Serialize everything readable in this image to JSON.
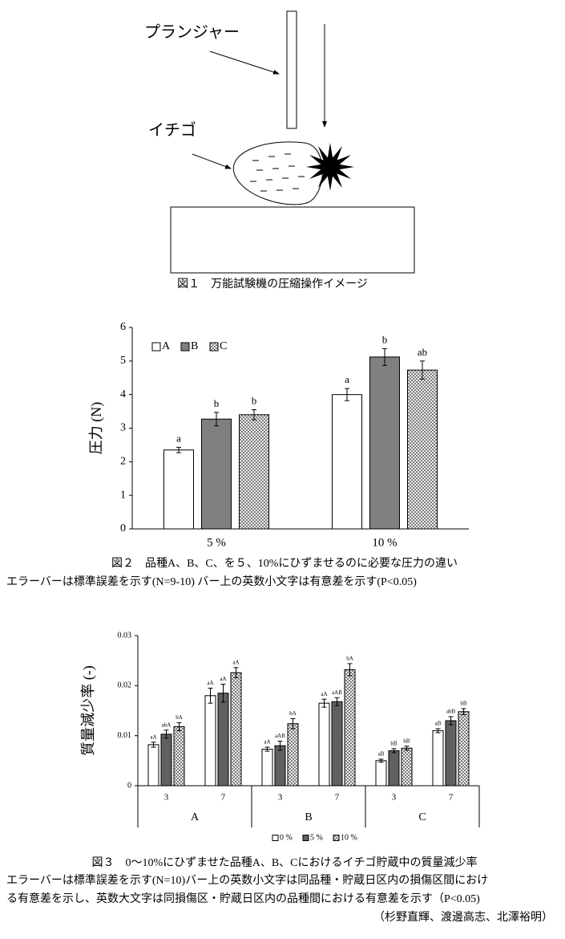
{
  "figure1": {
    "plunger_label": "プランジャー",
    "strawberry_label": "イチゴ",
    "caption": "図１　万能試験機の圧縮操作イメージ"
  },
  "chart_data": [
    {
      "type": "bar",
      "ylabel": "圧力 (N)",
      "categories": [
        "5 %",
        "10 %"
      ],
      "series": [
        {
          "name": "A",
          "color": "#ffffff",
          "values": [
            2.35,
            4.0
          ],
          "errors": [
            0.08,
            0.18
          ],
          "letters": [
            "a",
            "a"
          ]
        },
        {
          "name": "B",
          "color": "#808080",
          "values": [
            3.27,
            5.12
          ],
          "errors": [
            0.2,
            0.25
          ],
          "letters": [
            "b",
            "b"
          ]
        },
        {
          "name": "C",
          "color": "#ffffff",
          "hatch": true,
          "values": [
            3.4,
            4.73
          ],
          "errors": [
            0.15,
            0.27
          ],
          "letters": [
            "b",
            "ab"
          ]
        }
      ],
      "ylim": [
        0,
        6
      ],
      "yticks": [
        0,
        1,
        2,
        3,
        4,
        5,
        6
      ],
      "legend": "upper left",
      "caption": [
        "図２　品種A、B、C、を５、10%にひずませるのに必要な圧力の違い",
        "エラーバーは標準誤差を示す(N=9-10) バー上の英数小文字は有意差を示す(P<0.05)"
      ]
    },
    {
      "type": "bar",
      "ylabel": "質量減少率 (-)",
      "categories": [
        "3",
        "7",
        "3",
        "7",
        "3",
        "7"
      ],
      "groups": [
        "A",
        "B",
        "C"
      ],
      "series": [
        {
          "name": "0 %",
          "color": "#ffffff",
          "values": [
            0.0082,
            0.018,
            0.0073,
            0.0165,
            0.005,
            0.011
          ],
          "errors": [
            0.0005,
            0.0015,
            0.0004,
            0.0008,
            0.0003,
            0.0004
          ],
          "letters": [
            "aA",
            "aA",
            "aA",
            "aA",
            "aB",
            "aB"
          ]
        },
        {
          "name": "5 %",
          "color": "#606060",
          "values": [
            0.0103,
            0.0185,
            0.008,
            0.0168,
            0.007,
            0.013
          ],
          "errors": [
            0.0008,
            0.0018,
            0.0009,
            0.0008,
            0.0004,
            0.0008
          ],
          "letters": [
            "abA",
            "aA",
            "aAB",
            "aAB",
            "bB",
            "abB"
          ]
        },
        {
          "name": "10 %",
          "color": "#ffffff",
          "hatch": true,
          "values": [
            0.0118,
            0.0226,
            0.0124,
            0.0232,
            0.0075,
            0.0148
          ],
          "errors": [
            0.0008,
            0.001,
            0.001,
            0.0012,
            0.0004,
            0.0006
          ],
          "letters": [
            "bA",
            "aA",
            "bA",
            "bA",
            "bB",
            "bB"
          ]
        }
      ],
      "ylim": [
        0,
        0.03
      ],
      "yticks": [
        0,
        0.01,
        0.02,
        0.03
      ],
      "legend": "bottom",
      "caption": [
        "図３　0〜10%にひずませた品種A、B、Cにおけるイチゴ貯蔵中の質量減少率",
        "エラーバーは標準誤差を示す(N=10)バー上の英数小文字は同品種・貯蔵日区内の損傷区間におけ",
        "る有意差を示し、英数大文字は同損傷区・貯蔵日区内の品種間における有意差を示す（P<0.05)"
      ]
    }
  ],
  "author": "（杉野直輝、渡邊高志、北澤裕明）"
}
